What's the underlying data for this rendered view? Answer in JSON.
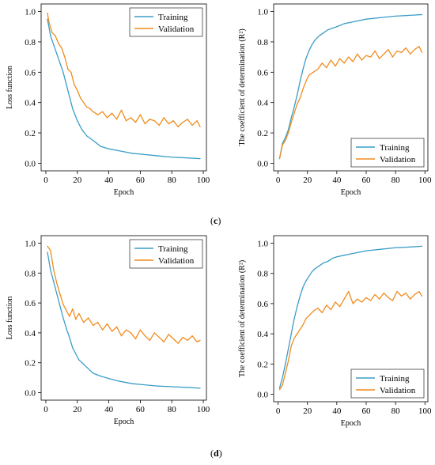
{
  "figure": {
    "labels": [
      {
        "key": "c",
        "open": "(",
        "letter": "c",
        "close": ")"
      },
      {
        "key": "d",
        "open": "(",
        "letter": "d",
        "close": ")"
      }
    ]
  },
  "colors": {
    "training": "#3a9dc8",
    "validation": "#f08c1e",
    "axis": "#000000"
  },
  "chart_data": [
    {
      "id": "c-loss",
      "type": "line",
      "xlabel": "Epoch",
      "ylabel": "Loss function",
      "xlim": [
        -3,
        102
      ],
      "ylim": [
        -0.05,
        1.05
      ],
      "xticks": [
        0,
        20,
        40,
        60,
        80,
        100
      ],
      "yticks": [
        0.0,
        0.2,
        0.4,
        0.6,
        0.8,
        1.0
      ],
      "legend": "top-right",
      "grid": false,
      "series": [
        {
          "name": "Training",
          "color": "#3a9dc8",
          "x": [
            1,
            3,
            5,
            7,
            9,
            11,
            13,
            15,
            17,
            20,
            23,
            26,
            30,
            35,
            40,
            45,
            50,
            55,
            60,
            70,
            80,
            90,
            98
          ],
          "y": [
            0.95,
            0.84,
            0.78,
            0.72,
            0.66,
            0.6,
            0.52,
            0.44,
            0.36,
            0.28,
            0.22,
            0.18,
            0.15,
            0.11,
            0.095,
            0.085,
            0.075,
            0.065,
            0.06,
            0.05,
            0.04,
            0.035,
            0.03
          ]
        },
        {
          "name": "Validation",
          "color": "#f08c1e",
          "x": [
            1,
            2,
            4,
            6,
            8,
            10,
            12,
            14,
            16,
            18,
            20,
            22,
            24,
            26,
            28,
            30,
            33,
            36,
            39,
            42,
            45,
            48,
            51,
            54,
            57,
            60,
            63,
            66,
            69,
            72,
            75,
            78,
            81,
            84,
            87,
            90,
            93,
            96,
            98
          ],
          "y": [
            0.99,
            0.93,
            0.86,
            0.84,
            0.79,
            0.76,
            0.7,
            0.62,
            0.6,
            0.52,
            0.48,
            0.43,
            0.4,
            0.37,
            0.36,
            0.34,
            0.32,
            0.34,
            0.3,
            0.33,
            0.29,
            0.35,
            0.28,
            0.3,
            0.27,
            0.32,
            0.26,
            0.29,
            0.28,
            0.25,
            0.3,
            0.26,
            0.28,
            0.24,
            0.27,
            0.29,
            0.25,
            0.28,
            0.24
          ]
        }
      ]
    },
    {
      "id": "c-r2",
      "type": "line",
      "xlabel": "Epoch",
      "ylabel": "The coefficient of determination (R²)",
      "xlim": [
        -3,
        102
      ],
      "ylim": [
        -0.05,
        1.05
      ],
      "xticks": [
        0,
        20,
        40,
        60,
        80,
        100
      ],
      "yticks": [
        0.0,
        0.2,
        0.4,
        0.6,
        0.8,
        1.0
      ],
      "legend": "bottom-right",
      "grid": false,
      "series": [
        {
          "name": "Training",
          "color": "#3a9dc8",
          "x": [
            1,
            3,
            5,
            7,
            9,
            11,
            13,
            15,
            17,
            19,
            21,
            23,
            25,
            28,
            31,
            34,
            37,
            40,
            45,
            50,
            55,
            60,
            70,
            80,
            90,
            98
          ],
          "y": [
            0.03,
            0.13,
            0.17,
            0.22,
            0.3,
            0.37,
            0.45,
            0.54,
            0.62,
            0.69,
            0.74,
            0.78,
            0.81,
            0.84,
            0.86,
            0.88,
            0.89,
            0.9,
            0.92,
            0.93,
            0.94,
            0.95,
            0.96,
            0.97,
            0.975,
            0.98
          ]
        },
        {
          "name": "Validation",
          "color": "#f08c1e",
          "x": [
            1,
            3,
            5,
            7,
            9,
            11,
            13,
            15,
            17,
            19,
            21,
            24,
            27,
            30,
            33,
            36,
            39,
            42,
            45,
            48,
            51,
            54,
            57,
            60,
            63,
            66,
            69,
            72,
            75,
            78,
            81,
            84,
            87,
            90,
            93,
            96,
            98
          ],
          "y": [
            0.03,
            0.12,
            0.15,
            0.2,
            0.27,
            0.33,
            0.39,
            0.43,
            0.49,
            0.54,
            0.58,
            0.6,
            0.62,
            0.66,
            0.63,
            0.68,
            0.64,
            0.69,
            0.66,
            0.7,
            0.67,
            0.72,
            0.68,
            0.71,
            0.7,
            0.74,
            0.69,
            0.72,
            0.75,
            0.7,
            0.74,
            0.73,
            0.76,
            0.72,
            0.75,
            0.77,
            0.73
          ]
        }
      ]
    },
    {
      "id": "d-loss",
      "type": "line",
      "xlabel": "Epoch",
      "ylabel": "Loss function",
      "xlim": [
        -3,
        102
      ],
      "ylim": [
        -0.05,
        1.05
      ],
      "xticks": [
        0,
        20,
        40,
        60,
        80,
        100
      ],
      "yticks": [
        0.0,
        0.2,
        0.4,
        0.6,
        0.8,
        1.0
      ],
      "legend": "top-right",
      "grid": false,
      "series": [
        {
          "name": "Training",
          "color": "#3a9dc8",
          "x": [
            1,
            3,
            5,
            7,
            9,
            11,
            13,
            15,
            17,
            19,
            21,
            24,
            27,
            30,
            35,
            40,
            45,
            50,
            55,
            60,
            70,
            80,
            90,
            98
          ],
          "y": [
            0.94,
            0.82,
            0.74,
            0.66,
            0.58,
            0.5,
            0.43,
            0.37,
            0.3,
            0.26,
            0.22,
            0.19,
            0.16,
            0.13,
            0.11,
            0.095,
            0.08,
            0.07,
            0.06,
            0.055,
            0.045,
            0.04,
            0.035,
            0.03
          ]
        },
        {
          "name": "Validation",
          "color": "#f08c1e",
          "x": [
            1,
            3,
            5,
            7,
            9,
            11,
            13,
            15,
            17,
            19,
            21,
            24,
            27,
            30,
            33,
            36,
            39,
            42,
            45,
            48,
            51,
            54,
            57,
            60,
            63,
            66,
            69,
            72,
            75,
            78,
            81,
            84,
            87,
            90,
            93,
            96,
            98
          ],
          "y": [
            0.98,
            0.95,
            0.82,
            0.73,
            0.66,
            0.59,
            0.55,
            0.51,
            0.56,
            0.49,
            0.53,
            0.47,
            0.5,
            0.45,
            0.47,
            0.42,
            0.46,
            0.41,
            0.44,
            0.38,
            0.42,
            0.4,
            0.36,
            0.42,
            0.38,
            0.35,
            0.4,
            0.37,
            0.34,
            0.39,
            0.36,
            0.33,
            0.37,
            0.35,
            0.38,
            0.34,
            0.35
          ]
        }
      ]
    },
    {
      "id": "d-r2",
      "type": "line",
      "xlabel": "Epoch",
      "ylabel": "The coefficient of determination (R²)",
      "xlim": [
        -3,
        102
      ],
      "ylim": [
        -0.05,
        1.05
      ],
      "xticks": [
        0,
        20,
        40,
        60,
        80,
        100
      ],
      "yticks": [
        0.0,
        0.2,
        0.4,
        0.6,
        0.8,
        1.0
      ],
      "legend": "bottom-right",
      "grid": false,
      "series": [
        {
          "name": "Training",
          "color": "#3a9dc8",
          "x": [
            1,
            3,
            5,
            7,
            9,
            11,
            13,
            15,
            17,
            19,
            21,
            23,
            25,
            28,
            31,
            34,
            37,
            40,
            45,
            50,
            55,
            60,
            70,
            80,
            90,
            98
          ],
          "y": [
            0.04,
            0.11,
            0.2,
            0.3,
            0.4,
            0.5,
            0.58,
            0.65,
            0.71,
            0.75,
            0.78,
            0.81,
            0.83,
            0.85,
            0.87,
            0.88,
            0.9,
            0.91,
            0.92,
            0.93,
            0.94,
            0.95,
            0.96,
            0.97,
            0.975,
            0.98
          ]
        },
        {
          "name": "Validation",
          "color": "#f08c1e",
          "x": [
            1,
            3,
            5,
            7,
            9,
            11,
            13,
            15,
            17,
            19,
            21,
            24,
            27,
            30,
            33,
            36,
            39,
            42,
            45,
            48,
            51,
            54,
            57,
            60,
            63,
            66,
            69,
            72,
            75,
            78,
            81,
            84,
            87,
            90,
            93,
            96,
            98
          ],
          "y": [
            0.03,
            0.06,
            0.14,
            0.22,
            0.32,
            0.37,
            0.4,
            0.43,
            0.46,
            0.5,
            0.52,
            0.55,
            0.57,
            0.54,
            0.59,
            0.56,
            0.61,
            0.58,
            0.63,
            0.68,
            0.6,
            0.63,
            0.61,
            0.64,
            0.62,
            0.66,
            0.63,
            0.67,
            0.64,
            0.62,
            0.68,
            0.65,
            0.67,
            0.63,
            0.66,
            0.68,
            0.65
          ]
        }
      ]
    }
  ]
}
